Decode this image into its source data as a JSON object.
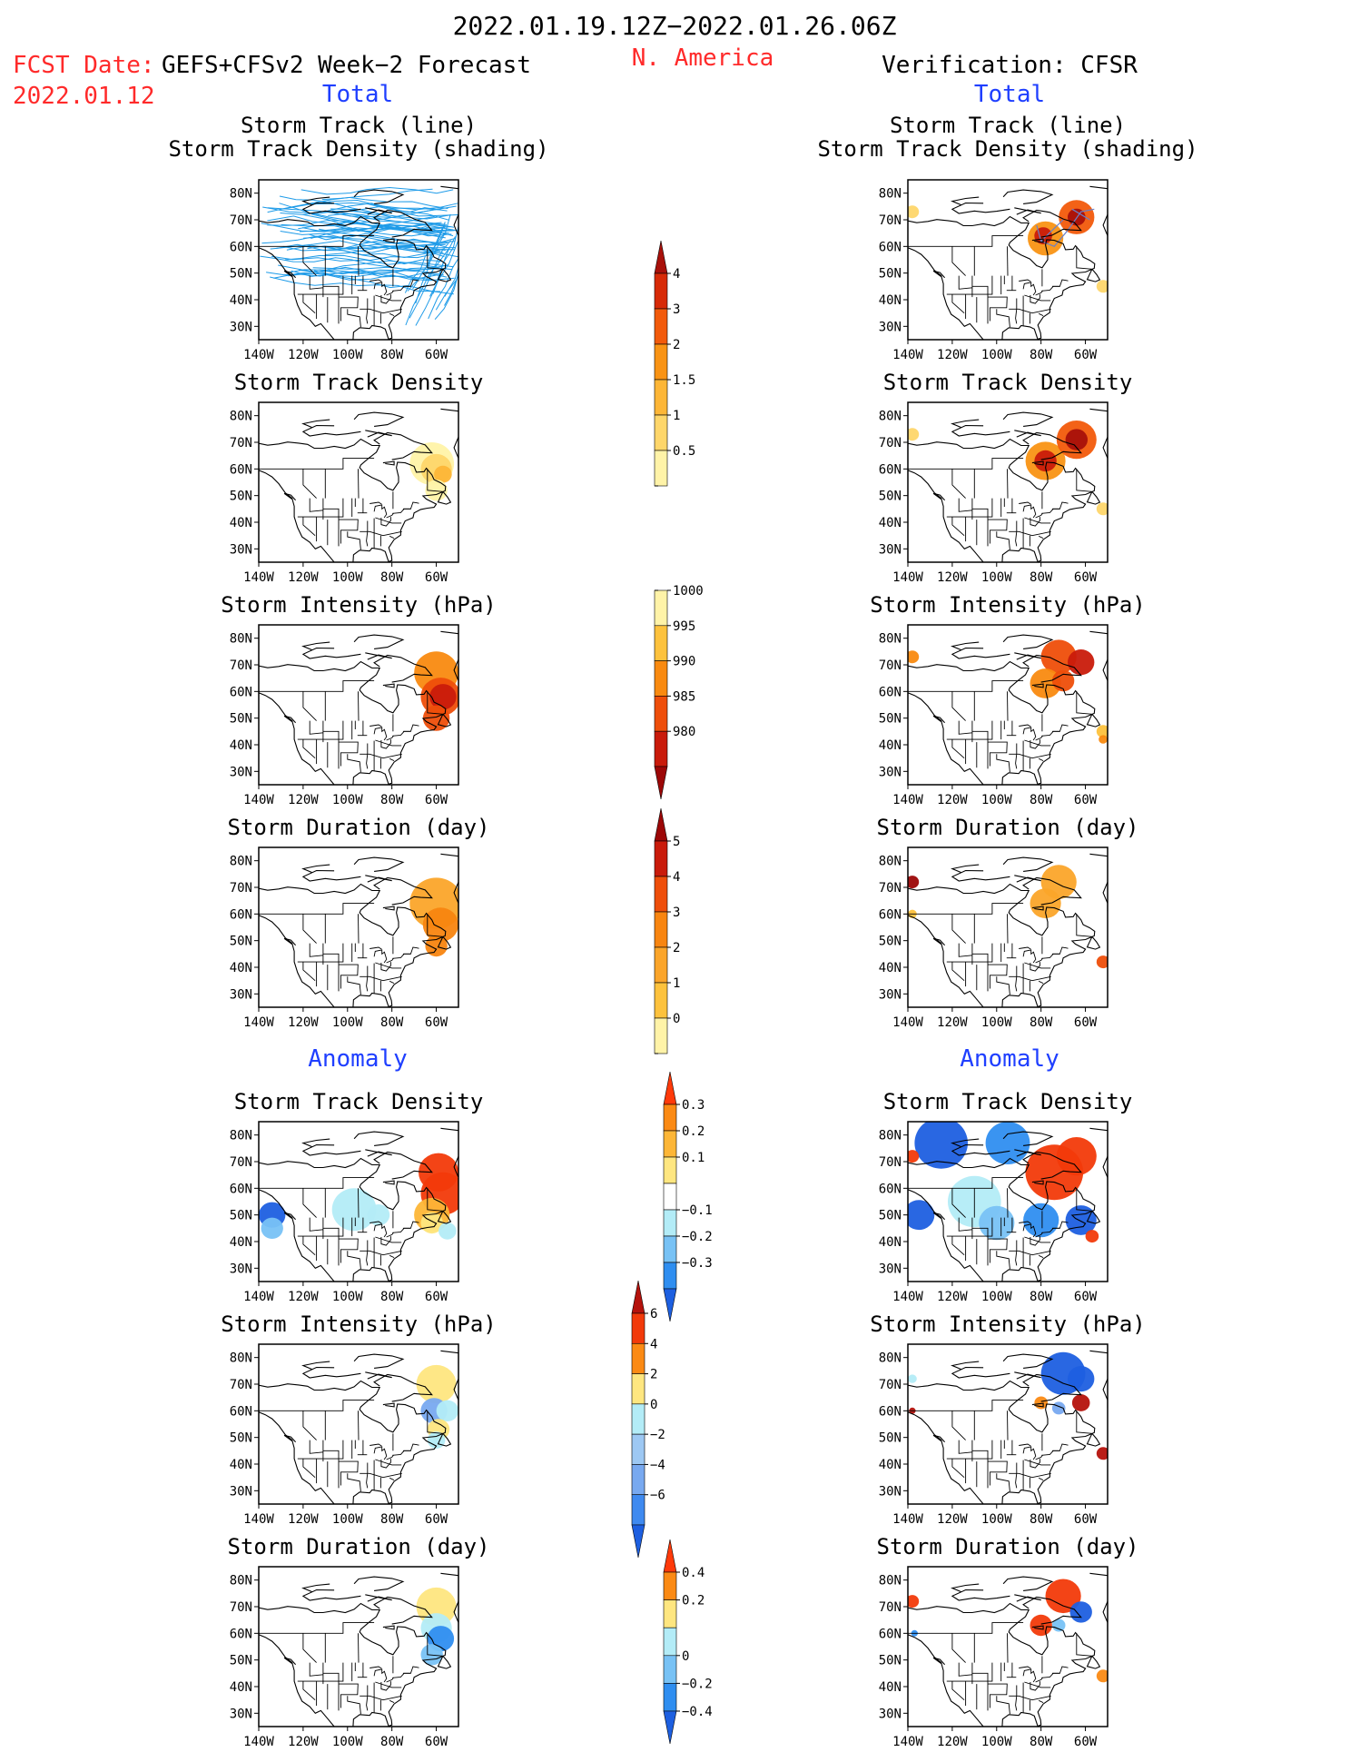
{
  "header": {
    "date_range": "2022.01.19.12Z−2022.01.26.06Z",
    "fcst_prefix": "FCST Date:",
    "fcst_model": "GEFS+CFSv2 Week−2 Forecast",
    "fcst_date": "2022.01.12",
    "region": "N. America",
    "verification": "Verification: CFSR"
  },
  "colors": {
    "red_text": "#ff2a2a",
    "blue_text": "#1f3fff",
    "track_line": "#1e9be8",
    "land_line": "#000000"
  },
  "columns": {
    "left": {
      "total_label": "Total",
      "anomaly_label": "Anomaly",
      "panels": [
        {
          "title1": "Storm Track (line)",
          "title2": "Storm Track Density (shading)"
        },
        {
          "title1": "Storm Track Density"
        },
        {
          "title1": "Storm Intensity (hPa)"
        },
        {
          "title1": "Storm Duration (day)"
        },
        {
          "title1": "Storm Track Density"
        },
        {
          "title1": "Storm Intensity (hPa)"
        },
        {
          "title1": "Storm Duration (day)"
        }
      ]
    },
    "right": {
      "total_label": "Total",
      "anomaly_label": "Anomaly",
      "panels": [
        {
          "title1": "Storm Track (line)",
          "title2": "Storm Track Density (shading)"
        },
        {
          "title1": "Storm Track Density"
        },
        {
          "title1": "Storm Intensity (hPa)"
        },
        {
          "title1": "Storm Duration (day)"
        },
        {
          "title1": "Storm Track Density"
        },
        {
          "title1": "Storm Intensity (hPa)"
        },
        {
          "title1": "Storm Duration (day)"
        }
      ]
    }
  },
  "map_axes": {
    "lat_labels": [
      "80N",
      "70N",
      "60N",
      "50N",
      "40N",
      "30N"
    ],
    "lon_labels": [
      "140W",
      "120W",
      "100W",
      "80W",
      "60W"
    ],
    "lat_range": [
      25,
      85
    ],
    "lon_range": [
      -140,
      -50
    ]
  },
  "colorbars": [
    {
      "name": "track-density-total",
      "labels": [
        "0.5",
        "1",
        "1.5",
        "2",
        "3",
        "4"
      ],
      "colors": [
        "#fff3a8",
        "#fed66a",
        "#fdb637",
        "#f99314",
        "#f25a0b",
        "#d72a07",
        "#a8100a"
      ],
      "top_arrow": true,
      "bottom_arrow": false
    },
    {
      "name": "intensity-total",
      "labels": [
        "1000",
        "995",
        "990",
        "985",
        "980"
      ],
      "colors": [
        "#fff3a8",
        "#fdc23d",
        "#f98a10",
        "#ee4e0a",
        "#c91b0b",
        "#9c0707"
      ],
      "top_arrow": false,
      "bottom_arrow": true
    },
    {
      "name": "duration-total",
      "labels": [
        "0",
        "1",
        "2",
        "3",
        "4",
        "5"
      ],
      "colors": [
        "#fff3a8",
        "#fdc23d",
        "#fba52a",
        "#f88510",
        "#ee4e0a",
        "#c91b0b",
        "#9c0707"
      ],
      "top_arrow": true,
      "bottom_arrow": false
    },
    {
      "name": "track-density-anomaly",
      "labels": [
        "0.3",
        "0.2",
        "0.1",
        "−0.1",
        "−0.2",
        "−0.3"
      ],
      "colors": [
        "#ff3a0a",
        "#fb8a14",
        "#fdb637",
        "#fee680",
        "#ffffff",
        "#b3ecf7",
        "#78c2f5",
        "#2f8ef0",
        "#1d5fe0"
      ],
      "top_arrow": true,
      "bottom_arrow": true
    },
    {
      "name": "intensity-anomaly",
      "labels": [
        "6",
        "4",
        "2",
        "0",
        "−2",
        "−4",
        "−6"
      ],
      "colors": [
        "#b5120c",
        "#f23a0a",
        "#fb8a14",
        "#fee680",
        "#b3ecf7",
        "#9dc8f3",
        "#78a9f0",
        "#3f8af0",
        "#1d5fe0"
      ],
      "top_arrow": true,
      "bottom_arrow": true
    },
    {
      "name": "duration-anomaly",
      "labels": [
        "0.4",
        "0.2",
        "0",
        "−0.2",
        "−0.4"
      ],
      "colors": [
        "#ff3a0a",
        "#fb8a14",
        "#fee680",
        "#b3ecf7",
        "#78c2f5",
        "#2f8ef0",
        "#1d5fe0"
      ],
      "top_arrow": true,
      "bottom_arrow": true
    }
  ]
}
